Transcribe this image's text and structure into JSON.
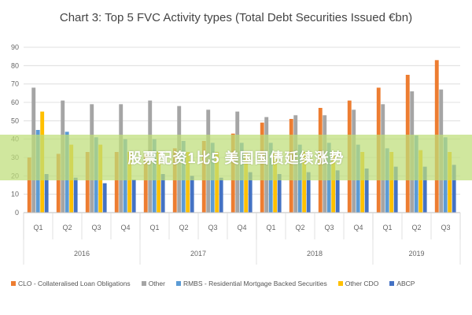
{
  "banner": {
    "text": "股票配资1比5 美国国债延续涨势"
  },
  "chart_data": {
    "type": "bar",
    "title": "Chart 3: Top 5 FVC Activity types (Total Debt Securities Issued €bn)",
    "ylim": [
      0,
      90
    ],
    "yticks": [
      0,
      10,
      20,
      30,
      40,
      50,
      60,
      70,
      80,
      90
    ],
    "grid": true,
    "legend_position": "bottom",
    "categories": [
      "Q1",
      "Q2",
      "Q3",
      "Q4",
      "Q1",
      "Q2",
      "Q3",
      "Q4",
      "Q1",
      "Q2",
      "Q3",
      "Q4",
      "Q1",
      "Q2",
      "Q3"
    ],
    "groups": [
      {
        "label": "2016",
        "start": 0,
        "count": 4
      },
      {
        "label": "2017",
        "start": 4,
        "count": 4
      },
      {
        "label": "2018",
        "start": 8,
        "count": 4
      },
      {
        "label": "2019",
        "start": 12,
        "count": 3
      }
    ],
    "series": [
      {
        "name": "CLO - Collateralised Loan Obligations",
        "color": "#ed7d31",
        "values": [
          30,
          32,
          33,
          33,
          32,
          35,
          39,
          43,
          49,
          51,
          57,
          61,
          68,
          75,
          83
        ]
      },
      {
        "name": "Other",
        "color": "#a5a5a5",
        "values": [
          68,
          61,
          59,
          59,
          61,
          58,
          56,
          55,
          52,
          53,
          53,
          56,
          59,
          66,
          67
        ]
      },
      {
        "name": "RMBS - Residential Mortgage Backed Securities",
        "color": "#5b9bd5",
        "values": [
          45,
          44,
          41,
          40,
          40,
          39,
          38,
          38,
          38,
          37,
          38,
          37,
          35,
          42,
          41
        ]
      },
      {
        "name": "Other CDO",
        "color": "#ffc000",
        "values": [
          55,
          37,
          37,
          33,
          33,
          33,
          33,
          33,
          33,
          33,
          33,
          33,
          33,
          34,
          33
        ]
      },
      {
        "name": "ABCP",
        "color": "#4472c4",
        "values": [
          21,
          19,
          16,
          18,
          21,
          20,
          19,
          22,
          21,
          22,
          23,
          24,
          25,
          25,
          26
        ]
      }
    ]
  }
}
